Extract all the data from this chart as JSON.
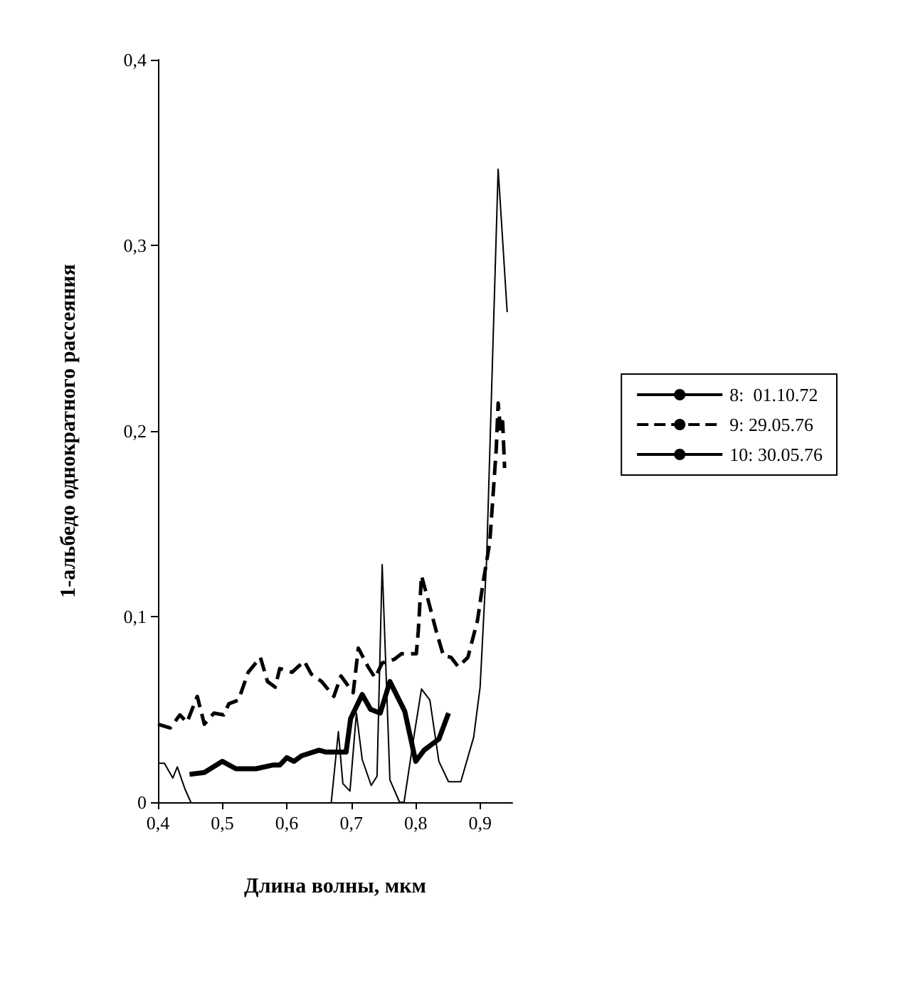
{
  "chart_data": {
    "type": "line",
    "xlabel": "Длина волны, мкм",
    "ylabel": "1-альбедо однократного рассеяния",
    "xlim": [
      0.4,
      0.95
    ],
    "xticks": [
      {
        "value": 0.4,
        "label": "0,4"
      },
      {
        "value": 0.5,
        "label": "0,5"
      },
      {
        "value": 0.6,
        "label": "0,6"
      },
      {
        "value": 0.7,
        "label": "0,7"
      },
      {
        "value": 0.8,
        "label": "0,8"
      },
      {
        "value": 0.9,
        "label": "0,9"
      }
    ],
    "ylim": [
      0,
      0.4
    ],
    "yticks": [
      0,
      {
        "value": 0.1,
        "label": "0,1"
      },
      {
        "value": 0.2,
        "label": "0,2"
      },
      {
        "value": 0.3,
        "label": "0,3"
      },
      {
        "value": 0.4,
        "label": "0,4"
      }
    ],
    "grid": false,
    "legend": "right",
    "marker": "none",
    "series": [
      {
        "name": "8:  01.10.72",
        "color": "#000000",
        "line_style": "solid",
        "x": [
          0.449,
          0.472,
          0.5,
          0.521,
          0.552,
          0.578,
          0.589,
          0.6,
          0.611,
          0.623,
          0.65,
          0.661,
          0.692,
          0.699,
          0.717,
          0.73,
          0.745,
          0.76,
          0.783,
          0.8,
          0.813,
          0.836,
          0.851
        ],
        "values": [
          0.015,
          0.016,
          0.022,
          0.018,
          0.018,
          0.02,
          0.02,
          0.024,
          0.022,
          0.025,
          0.028,
          0.027,
          0.027,
          0.045,
          0.058,
          0.05,
          0.048,
          0.065,
          0.049,
          0.022,
          0.028,
          0.034,
          0.048
        ]
      },
      {
        "name": "9: 29.05.76",
        "color": "#000000",
        "line_style": "dashed",
        "x": [
          0.4,
          0.419,
          0.434,
          0.445,
          0.461,
          0.472,
          0.487,
          0.502,
          0.51,
          0.525,
          0.54,
          0.559,
          0.57,
          0.582,
          0.589,
          0.608,
          0.627,
          0.638,
          0.654,
          0.673,
          0.684,
          0.703,
          0.711,
          0.726,
          0.737,
          0.748,
          0.767,
          0.778,
          0.801,
          0.804,
          0.809,
          0.82,
          0.832,
          0.843,
          0.855,
          0.866,
          0.881,
          0.896,
          0.904,
          0.915,
          0.92,
          0.925,
          0.928,
          0.932,
          0.935,
          0.938
        ],
        "values": [
          0.042,
          0.04,
          0.047,
          0.043,
          0.057,
          0.042,
          0.048,
          0.047,
          0.053,
          0.055,
          0.07,
          0.078,
          0.065,
          0.062,
          0.072,
          0.07,
          0.076,
          0.069,
          0.065,
          0.057,
          0.068,
          0.059,
          0.083,
          0.073,
          0.067,
          0.075,
          0.077,
          0.08,
          0.08,
          0.092,
          0.122,
          0.108,
          0.092,
          0.079,
          0.078,
          0.073,
          0.078,
          0.098,
          0.117,
          0.14,
          0.165,
          0.19,
          0.215,
          0.2,
          0.205,
          0.18
        ]
      },
      {
        "name": "10: 30.05.76",
        "color": "#000000",
        "line_style": "solid",
        "x": [
          0.4,
          0.41,
          0.423,
          0.43,
          0.442,
          0.451,
          0.66,
          0.669,
          0.68,
          0.687,
          0.698,
          0.708,
          0.717,
          0.731,
          0.74,
          0.748,
          0.76,
          0.775,
          0.782,
          0.798,
          0.809,
          0.822,
          0.836,
          0.851,
          0.87,
          0.89,
          0.9,
          0.91,
          0.928,
          0.942
        ],
        "values": [
          0.021,
          0.021,
          0.013,
          0.019,
          0.007,
          0,
          null,
          0,
          0.038,
          0.01,
          0.006,
          0.048,
          0.023,
          0.009,
          0.014,
          0.128,
          0.012,
          0,
          0,
          0.037,
          0.061,
          0.055,
          0.022,
          0.011,
          0.011,
          0.035,
          0.062,
          0.13,
          0.341,
          0.264
        ]
      }
    ]
  }
}
